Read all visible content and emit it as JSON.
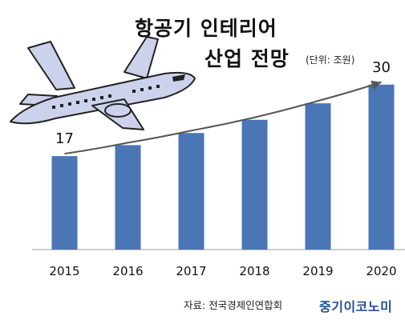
{
  "title_line1": "항공기 인테리어",
  "title_line2": "산업 전망",
  "unit_note": "(단위: 조원)",
  "source": "자료: 전국경제인연합회",
  "brand": "중기이코노미",
  "colors": {
    "bar": "#4a76b6",
    "trend_line": "#555555",
    "axis": "#999999",
    "brand": "#1f4e99"
  },
  "icon": "airplane-illustration",
  "chart_data": {
    "type": "bar",
    "categories": [
      "2015",
      "2016",
      "2017",
      "2018",
      "2019",
      "2020"
    ],
    "values": [
      17,
      19,
      21.2,
      23.6,
      26.6,
      30
    ],
    "data_labels": [
      {
        "category": "2015",
        "text": "17"
      },
      {
        "category": "2020",
        "text": "30"
      }
    ],
    "trend_line": {
      "from": "2015",
      "to": "2020",
      "arrow": true
    },
    "ylim": [
      0,
      32
    ],
    "title": "항공기 인테리어 산업 전망",
    "xlabel": "",
    "ylabel": "",
    "grid": false,
    "legend": "none"
  }
}
